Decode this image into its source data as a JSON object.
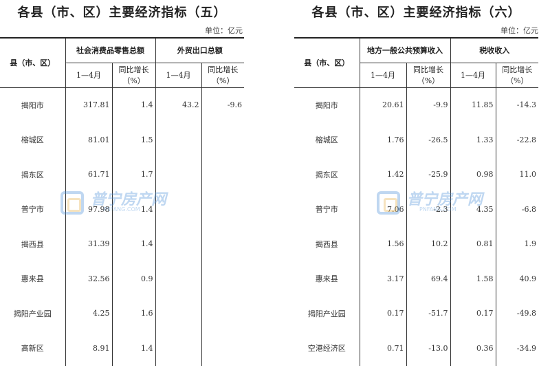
{
  "left": {
    "title": "各县（市、区）主要经济指标（五）",
    "unit": "单位：亿元",
    "header": {
      "region": "县（市、区）",
      "group1": "社会消费品零售总额",
      "group2": "外贸出口总额",
      "period": "1—4月",
      "growth": "同比增长（%）"
    },
    "rows": [
      {
        "name": "揭阳市",
        "v1": "317.81",
        "g1": "1.4",
        "v2": "43.2",
        "g2": "-9.6"
      },
      {
        "name": "榕城区",
        "v1": "81.01",
        "g1": "1.5",
        "v2": "",
        "g2": ""
      },
      {
        "name": "揭东区",
        "v1": "61.71",
        "g1": "1.7",
        "v2": "",
        "g2": ""
      },
      {
        "name": "普宁市",
        "v1": "97.98",
        "g1": "1.4",
        "v2": "",
        "g2": ""
      },
      {
        "name": "揭西县",
        "v1": "31.39",
        "g1": "1.4",
        "v2": "",
        "g2": ""
      },
      {
        "name": "惠来县",
        "v1": "32.56",
        "g1": "0.9",
        "v2": "",
        "g2": ""
      },
      {
        "name": "揭阳产业园",
        "v1": "4.25",
        "g1": "1.6",
        "v2": "",
        "g2": ""
      },
      {
        "name": "高新区",
        "v1": "8.91",
        "g1": "1.4",
        "v2": "",
        "g2": ""
      }
    ]
  },
  "right": {
    "title": "各县（市、区）主要经济指标（六）",
    "unit": "单位：亿元",
    "header": {
      "region": "县（市、区）",
      "group1": "地方一般公共预算收入",
      "group2": "税收收入",
      "period": "1—4月",
      "growth": "同比增长（%）"
    },
    "rows": [
      {
        "name": "揭阳市",
        "v1": "20.61",
        "g1": "-9.9",
        "v2": "11.85",
        "g2": "-14.3"
      },
      {
        "name": "榕城区",
        "v1": "1.76",
        "g1": "-26.5",
        "v2": "1.33",
        "g2": "-22.8"
      },
      {
        "name": "揭东区",
        "v1": "1.42",
        "g1": "-25.9",
        "v2": "0.98",
        "g2": "11.0"
      },
      {
        "name": "普宁市",
        "v1": "7.06",
        "g1": "-2.3",
        "v2": "4.35",
        "g2": "-6.8"
      },
      {
        "name": "揭西县",
        "v1": "1.56",
        "g1": "10.2",
        "v2": "0.81",
        "g2": "1.9"
      },
      {
        "name": "惠来县",
        "v1": "3.17",
        "g1": "69.4",
        "v2": "1.58",
        "g2": "40.9"
      },
      {
        "name": "揭阳产业园",
        "v1": "0.17",
        "g1": "-51.7",
        "v2": "0.17",
        "g2": "-49.8"
      },
      {
        "name": "空港经济区",
        "v1": "0.71",
        "g1": "-13.0",
        "v2": "0.36",
        "g2": "-34.9"
      }
    ]
  },
  "watermark": {
    "text": "普宁房产网",
    "domain": "PNFANG.COM",
    "color": "#4a90d9"
  }
}
